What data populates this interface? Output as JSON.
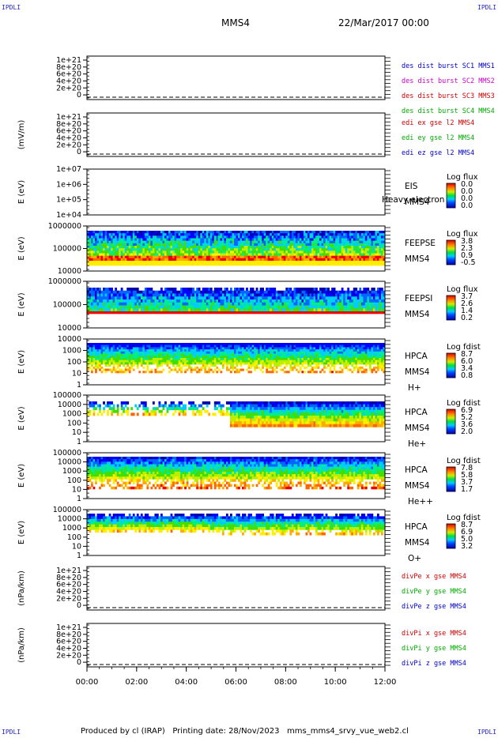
{
  "corners": [
    "IPDLI",
    "IPDLI",
    "IPDLI",
    "IPDLI"
  ],
  "header": {
    "spacecraft": "MMS4",
    "datetime": "22/Mar/2017 00:00"
  },
  "footer": "Produced by cl (IRAP)   Printing date: 28/Nov/2023   mms_mms4_srvy_vue_web2.cl",
  "time_axis": [
    "00:00",
    "02:00",
    "04:00",
    "06:00",
    "08:00",
    "10:00",
    "12:00"
  ],
  "chart_data": [
    {
      "type": "line",
      "ylabel": "",
      "ticks": [
        "1e+21",
        "8e+20",
        "6e+20",
        "4e+20",
        "2e+20",
        "0"
      ],
      "legend": [
        {
          "text": "des dist burst SC1 MMS1",
          "color": "#0000cc"
        },
        {
          "text": "des dist burst SC2 MMS2",
          "color": "#cc00cc"
        },
        {
          "text": "des dist burst SC3 MMS3",
          "color": "#cc0000"
        },
        {
          "text": "des dist burst SC4 MMS4",
          "color": "#00aa00"
        }
      ],
      "series": []
    },
    {
      "type": "line",
      "ylabel": "(mV/m)",
      "ticks": [
        "1e+21",
        "8e+20",
        "6e+20",
        "4e+20",
        "2e+20",
        "0"
      ],
      "legend": [
        {
          "text": "edi ex gse l2 MMS4",
          "color": "#cc0000"
        },
        {
          "text": "edi ey gse l2 MMS4",
          "color": "#00aa00"
        },
        {
          "text": "edi ez gse l2 MMS4",
          "color": "#0000cc"
        }
      ],
      "series": []
    },
    {
      "type": "heatmap",
      "ylabel": "E (eV)",
      "ticks": [
        "1e+07",
        "1e+06",
        "1e+05",
        "1e+04"
      ],
      "labels": [
        "EIS",
        "MMS4"
      ],
      "overlay": "Heavy electron to",
      "colorbar_title": "Log flux",
      "colorbar_values": [
        "0.0",
        "0.0",
        "0.0",
        "0.0"
      ],
      "pattern": "none"
    },
    {
      "type": "heatmap",
      "ylabel": "E (eV)",
      "ticks": [
        "1000000",
        "100000",
        "10000"
      ],
      "labels": [
        "FEEPSE",
        "MMS4"
      ],
      "colorbar_title": "Log flux",
      "colorbar_values": [
        "3.8",
        "2.3",
        "0.9",
        "-0.5"
      ],
      "pattern": "feepse"
    },
    {
      "type": "heatmap",
      "ylabel": "E (eV)",
      "ticks": [
        "1000000",
        "100000",
        "10000"
      ],
      "labels": [
        "FEEPSI",
        "MMS4"
      ],
      "colorbar_title": "Log flux",
      "colorbar_values": [
        "3.7",
        "2.6",
        "1.4",
        "0.2"
      ],
      "pattern": "feepsi"
    },
    {
      "type": "heatmap",
      "ylabel": "E (eV)",
      "ticks": [
        "10000",
        "1000",
        "100",
        "10",
        "1"
      ],
      "labels": [
        "HPCA",
        "MMS4",
        "H+"
      ],
      "colorbar_title": "Log fdist",
      "colorbar_values": [
        "8.7",
        "6.0",
        "3.4",
        "0.8"
      ],
      "pattern": "hplus"
    },
    {
      "type": "heatmap",
      "ylabel": "E (eV)",
      "ticks": [
        "100000",
        "10000",
        "1000",
        "100",
        "10",
        "1"
      ],
      "labels": [
        "HPCA",
        "MMS4",
        "He+"
      ],
      "colorbar_title": "Log fdist",
      "colorbar_values": [
        "6.9",
        "5.2",
        "3.6",
        "2.0"
      ],
      "pattern": "heplus"
    },
    {
      "type": "heatmap",
      "ylabel": "E (eV)",
      "ticks": [
        "100000",
        "10000",
        "1000",
        "100",
        "10",
        "1"
      ],
      "labels": [
        "HPCA",
        "MMS4",
        "He++"
      ],
      "colorbar_title": "Log fdist",
      "colorbar_values": [
        "7.8",
        "5.8",
        "3.7",
        "1.7"
      ],
      "pattern": "heplusplus"
    },
    {
      "type": "heatmap",
      "ylabel": "E (eV)",
      "ticks": [
        "100000",
        "10000",
        "1000",
        "100",
        "10",
        "1"
      ],
      "labels": [
        "HPCA",
        "MMS4",
        "O+"
      ],
      "colorbar_title": "Log fdist",
      "colorbar_values": [
        "8.7",
        "6.9",
        "5.0",
        "3.2"
      ],
      "pattern": "oplus"
    },
    {
      "type": "line",
      "ylabel": "(nPa/km)",
      "ticks": [
        "1e+21",
        "8e+20",
        "6e+20",
        "4e+20",
        "2e+20",
        "0"
      ],
      "legend": [
        {
          "text": "divPe x gse MMS4",
          "color": "#cc0000"
        },
        {
          "text": "divPe y gse MMS4",
          "color": "#00aa00"
        },
        {
          "text": "divPe z gse MMS4",
          "color": "#0000cc"
        }
      ],
      "series": []
    },
    {
      "type": "line",
      "ylabel": "(nPa/km)",
      "ticks": [
        "1e+21",
        "8e+20",
        "6e+20",
        "4e+20",
        "2e+20",
        "0"
      ],
      "legend": [
        {
          "text": "divPi x gse MMS4",
          "color": "#cc0000"
        },
        {
          "text": "divPi y gse MMS4",
          "color": "#00aa00"
        },
        {
          "text": "divPi z gse MMS4",
          "color": "#0000cc"
        }
      ],
      "series": []
    }
  ]
}
